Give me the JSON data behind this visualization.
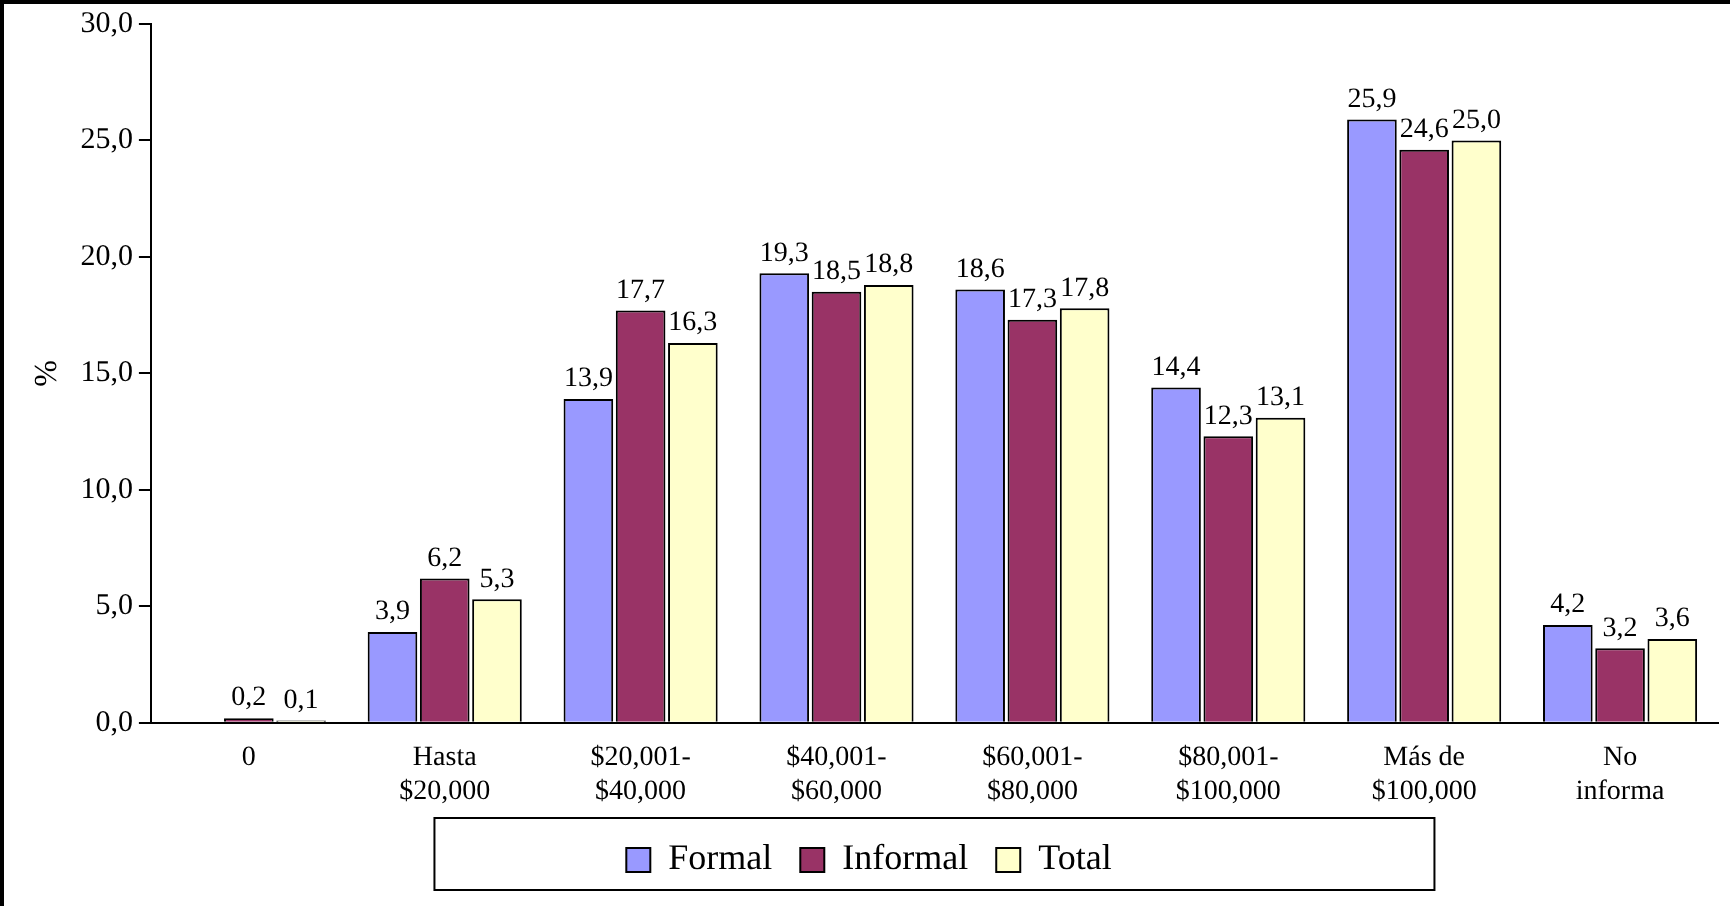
{
  "chart_data": {
    "type": "bar",
    "ylabel": "%",
    "categories": [
      "0",
      "Hasta $20,000",
      "$20,001-$40,000",
      "$40,001-$60,000",
      "$60,001-$80,000",
      "$80,001-$100,000",
      "Más de $100,000",
      "No informa"
    ],
    "series": [
      {
        "name": "Formal",
        "color": "#9999ff",
        "values": [
          0.0,
          3.9,
          13.9,
          19.3,
          18.6,
          14.4,
          25.9,
          4.2
        ],
        "value_labels": [
          null,
          "3,9",
          "13,9",
          "19,3",
          "18,6",
          "14,4",
          "25,9",
          "4,2"
        ]
      },
      {
        "name": "Informal",
        "color": "#993366",
        "values": [
          0.2,
          6.2,
          17.7,
          18.5,
          17.3,
          12.3,
          24.6,
          3.2
        ],
        "value_labels": [
          "0,2",
          "6,2",
          "17,7",
          "18,5",
          "17,3",
          "12,3",
          "24,6",
          "3,2"
        ]
      },
      {
        "name": "Total",
        "color": "#ffffcc",
        "values": [
          0.1,
          5.3,
          16.3,
          18.8,
          17.8,
          13.1,
          25.0,
          3.6
        ],
        "value_labels": [
          "0,1",
          "5,3",
          "16,3",
          "18,8",
          "17,8",
          "13,1",
          "25,0",
          "3,6"
        ]
      }
    ],
    "ylim": [
      0,
      30
    ],
    "yticks": [
      {
        "value": 0,
        "label": "0,0"
      },
      {
        "value": 5,
        "label": "5,0"
      },
      {
        "value": 10,
        "label": "10,0"
      },
      {
        "value": 15,
        "label": "15,0"
      },
      {
        "value": 20,
        "label": "20,0"
      },
      {
        "value": 25,
        "label": "25,0"
      },
      {
        "value": 30,
        "label": "30,0"
      }
    ],
    "grid": false,
    "legend": "bottom"
  }
}
